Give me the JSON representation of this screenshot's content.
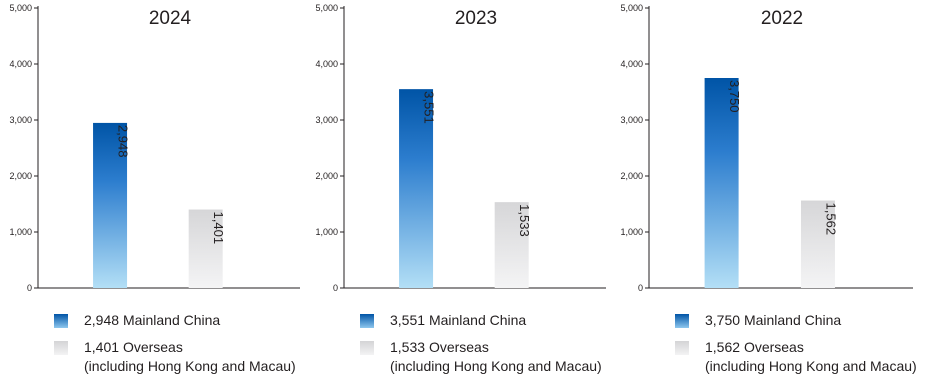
{
  "chart_data": [
    {
      "type": "bar",
      "title": "2024",
      "categories": [
        "Mainland China",
        "Overseas"
      ],
      "values": [
        2948,
        1401
      ],
      "value_labels": [
        "2,948",
        "1,401"
      ],
      "ylim": [
        0,
        5000
      ],
      "y_ticks": [
        "0",
        "1,000",
        "2,000",
        "3,000",
        "4,000",
        "5,000"
      ],
      "legend": [
        {
          "value": "2,948",
          "label": "Mainland China",
          "note": ""
        },
        {
          "value": "1,401",
          "label": "Overseas",
          "note": "(including Hong Kong and Macau)"
        }
      ]
    },
    {
      "type": "bar",
      "title": "2023",
      "categories": [
        "Mainland China",
        "Overseas"
      ],
      "values": [
        3551,
        1533
      ],
      "value_labels": [
        "3,551",
        "1,533"
      ],
      "ylim": [
        0,
        5000
      ],
      "y_ticks": [
        "0",
        "1,000",
        "2,000",
        "3,000",
        "4,000",
        "5,000"
      ],
      "legend": [
        {
          "value": "3,551",
          "label": "Mainland China",
          "note": ""
        },
        {
          "value": "1,533",
          "label": "Overseas",
          "note": "(including Hong Kong and Macau)"
        }
      ]
    },
    {
      "type": "bar",
      "title": "2022",
      "categories": [
        "Mainland China",
        "Overseas"
      ],
      "values": [
        3750,
        1562
      ],
      "value_labels": [
        "3,750",
        "1,562"
      ],
      "ylim": [
        0,
        5000
      ],
      "y_ticks": [
        "0",
        "1,000",
        "2,000",
        "3,000",
        "4,000",
        "5,000"
      ],
      "legend": [
        {
          "value": "3,750",
          "label": "Mainland China",
          "note": ""
        },
        {
          "value": "1,562",
          "label": "Overseas",
          "note": "(including Hong Kong and Macau)"
        }
      ]
    }
  ],
  "colors": {
    "mainland_top": "#0054a6",
    "mainland_bottom": "#b3dff6",
    "overseas_top": "#d6d6d8",
    "overseas_bottom": "#f4f4f5",
    "axis": "#231f20"
  }
}
